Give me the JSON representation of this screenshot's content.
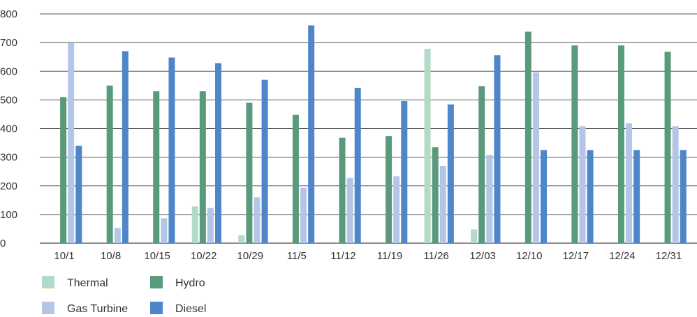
{
  "chart_data": {
    "type": "bar",
    "categories": [
      "10/1",
      "10/8",
      "10/15",
      "10/22",
      "10/29",
      "11/5",
      "11/12",
      "11/19",
      "11/26",
      "12/03",
      "12/10",
      "12/17",
      "12/24",
      "12/31"
    ],
    "series": [
      {
        "name": "Thermal",
        "color": "#b3d9c7",
        "values": [
          0,
          0,
          0,
          128,
          28,
          0,
          0,
          0,
          678,
          48,
          0,
          0,
          0,
          0
        ]
      },
      {
        "name": "Hydro",
        "color": "#5a9a7c",
        "values": [
          510,
          550,
          530,
          530,
          490,
          448,
          368,
          374,
          335,
          548,
          738,
          690,
          690,
          668
        ]
      },
      {
        "name": "Gas Turbine",
        "color": "#b3c6e8",
        "values": [
          698,
          53,
          87,
          123,
          160,
          193,
          228,
          233,
          270,
          308,
          596,
          408,
          418,
          408
        ]
      },
      {
        "name": "Diesel",
        "color": "#4f86c9",
        "values": [
          340,
          670,
          648,
          628,
          570,
          760,
          542,
          496,
          484,
          656,
          325,
          325,
          325,
          325
        ]
      }
    ],
    "ylim": [
      0,
      800
    ],
    "yticks": [
      "0",
      "100",
      "200",
      "300",
      "400",
      "500",
      "600",
      "700",
      "800"
    ],
    "grid": "horizontal",
    "legend_position": "bottom-left"
  }
}
